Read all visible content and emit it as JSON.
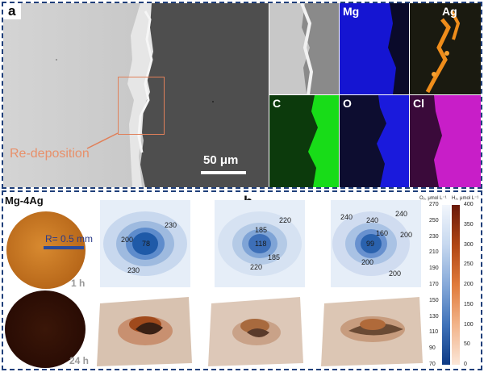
{
  "panel_a": {
    "label": "a",
    "annotation": "Re-deposition",
    "scale_bar": "50 μm",
    "maps": [
      {
        "element": "",
        "name": "sem-inset"
      },
      {
        "element": "Mg",
        "color": "#1a1adc"
      },
      {
        "element": "Ag",
        "color": "#e88a1a"
      },
      {
        "element": "C",
        "color": "#1ed21e"
      },
      {
        "element": "O",
        "color": "#1a1adc"
      },
      {
        "element": "Cl",
        "color": "#d21ed2"
      }
    ]
  },
  "panel_b": {
    "label": "b",
    "sample": "Mg-4Ag",
    "radius": "R= 0.5 mm",
    "times": [
      "1 h",
      "24 h"
    ],
    "maps": [
      {
        "center": "78",
        "values": [
          "230",
          "200",
          "230"
        ]
      },
      {
        "center": "118",
        "values": [
          "185",
          "220",
          "185",
          "220"
        ]
      },
      {
        "center": "99",
        "values": [
          "240",
          "240",
          "240",
          "160",
          "200",
          "200",
          "200"
        ]
      }
    ],
    "colorbar": {
      "title_left": "O₂, μmol L⁻¹",
      "title_right": "H₂, μmol L⁻¹",
      "o2_ticks": [
        "270",
        "250",
        "230",
        "210",
        "190",
        "170",
        "150",
        "130",
        "110",
        "90",
        "70"
      ],
      "h2_ticks": [
        "400",
        "350",
        "300",
        "250",
        "200",
        "150",
        "100",
        "50",
        "0"
      ]
    }
  }
}
